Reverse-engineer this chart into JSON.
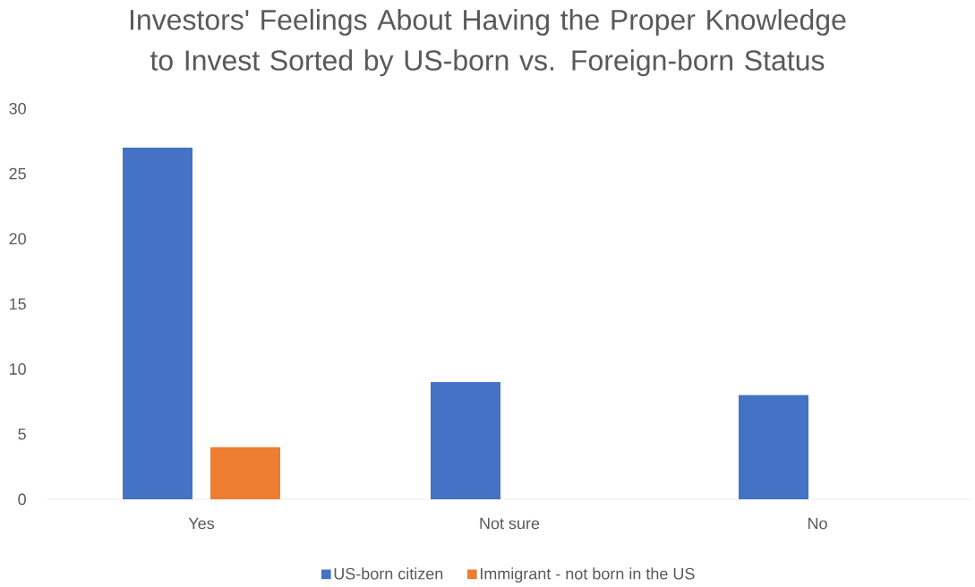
{
  "chart_data": {
    "type": "bar",
    "title": "Investors' Feelings About Having the Proper Knowledge to Invest Sorted by US-born vs. Foreign-born Status",
    "categories": [
      "Yes",
      "Not sure",
      "No"
    ],
    "series": [
      {
        "name": "US-born citizen",
        "color": "#4472c4",
        "values": [
          27,
          9,
          8
        ]
      },
      {
        "name": "Immigrant - not born in the US",
        "color": "#ed7d31",
        "values": [
          4,
          0,
          0
        ]
      }
    ],
    "ylim": [
      0,
      30
    ],
    "yticks": [
      0,
      5,
      10,
      15,
      20,
      25,
      30
    ],
    "legend": "bottom"
  }
}
